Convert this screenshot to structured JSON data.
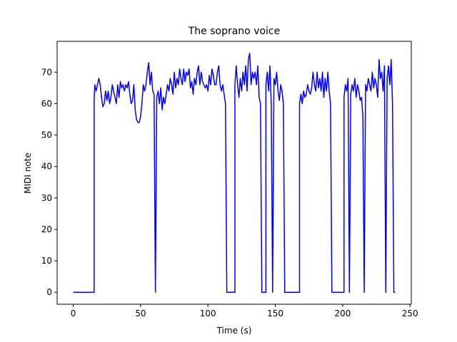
{
  "chart_data": {
    "type": "line",
    "title": "The soprano voice",
    "xlabel": "Time (s)",
    "ylabel": "MIDI note",
    "xlim": [
      -11.95,
      250.95
    ],
    "ylim": [
      -3.8,
      79.8
    ],
    "xticks": [
      0,
      50,
      100,
      150,
      200,
      250
    ],
    "yticks": [
      0,
      10,
      20,
      30,
      40,
      50,
      60,
      70
    ],
    "series": [
      {
        "color": "#0000ff",
        "x": [
          0,
          15.5,
          15.5,
          16,
          17,
          18,
          19,
          20,
          21,
          22,
          23,
          24,
          25,
          26,
          27,
          28,
          29,
          30,
          31,
          32,
          33,
          34,
          35,
          36,
          37,
          38,
          39,
          40,
          41,
          42,
          43,
          44,
          45,
          46,
          47,
          48,
          49,
          50,
          51,
          52,
          53,
          54,
          55,
          56,
          57,
          58,
          59,
          60,
          61,
          62,
          63,
          64,
          65,
          66,
          67,
          68,
          69,
          70,
          71,
          72,
          73,
          74,
          75,
          76,
          77,
          78,
          79,
          80,
          81,
          82,
          83,
          84,
          85,
          86,
          87,
          88,
          89,
          90,
          91,
          92,
          93,
          94,
          95,
          96,
          97,
          98,
          99,
          100,
          101,
          102,
          103,
          104,
          105,
          106,
          107,
          108,
          109,
          110,
          111,
          112,
          113,
          114,
          120,
          120,
          121,
          122,
          123,
          124,
          125,
          126,
          127,
          128,
          129,
          130,
          131,
          132,
          133,
          134,
          135,
          136,
          137,
          138,
          139,
          140,
          143,
          143,
          144,
          145,
          146,
          147,
          148,
          149,
          150,
          151,
          152,
          153,
          154,
          155,
          156,
          157,
          168,
          168,
          169,
          170,
          171,
          172,
          173,
          174,
          175,
          176,
          177,
          178,
          179,
          180,
          181,
          182,
          183,
          184,
          185,
          186,
          187,
          188,
          189,
          190,
          191,
          192,
          201,
          201,
          202,
          203,
          204,
          205,
          206,
          207,
          208,
          209,
          210,
          211,
          212,
          213,
          214,
          215,
          216,
          217,
          218,
          219,
          220,
          221,
          222,
          223,
          224,
          225,
          226,
          227,
          228,
          229,
          230,
          231,
          232,
          233,
          234,
          235,
          236,
          237,
          238,
          239
        ],
        "values": [
          0,
          0,
          61,
          66,
          64,
          66,
          68,
          66,
          62,
          59,
          60,
          64,
          61,
          64,
          60,
          62,
          66,
          64,
          62,
          60,
          66,
          62,
          67,
          65,
          66,
          64,
          66,
          65,
          67,
          63,
          60,
          61,
          66,
          58,
          55,
          54,
          54,
          56,
          60,
          66,
          64,
          66,
          70,
          73,
          66,
          70,
          64,
          63,
          0,
          62,
          64,
          60,
          65,
          58,
          62,
          60,
          63,
          66,
          64,
          68,
          66,
          63,
          70,
          65,
          68,
          66,
          71,
          68,
          66,
          71,
          67,
          70,
          69,
          71,
          65,
          67,
          63,
          68,
          66,
          70,
          72,
          66,
          70,
          67,
          66,
          65,
          66,
          64,
          69,
          66,
          71,
          69,
          66,
          66,
          70,
          72,
          66,
          64,
          66,
          63,
          60,
          0,
          0,
          66,
          72,
          66,
          62,
          68,
          64,
          70,
          66,
          72,
          64,
          74,
          76,
          66,
          70,
          68,
          70,
          66,
          72,
          62,
          60,
          0,
          0,
          66,
          70,
          64,
          72,
          60,
          0,
          68,
          66,
          70,
          64,
          61,
          66,
          64,
          60,
          0,
          0,
          60,
          63,
          60,
          64,
          62,
          63,
          66,
          64,
          63,
          65,
          70,
          66,
          64,
          70,
          65,
          68,
          64,
          70,
          62,
          68,
          64,
          70,
          64,
          60,
          0,
          0,
          62,
          66,
          64,
          68,
          0,
          63,
          66,
          64,
          68,
          62,
          66,
          64,
          61,
          62,
          56,
          0,
          66,
          64,
          68,
          66,
          64,
          70,
          65,
          68,
          66,
          62,
          74,
          68,
          70,
          64,
          72,
          0,
          68,
          72,
          66,
          74,
          60,
          0,
          0
        ]
      }
    ]
  }
}
